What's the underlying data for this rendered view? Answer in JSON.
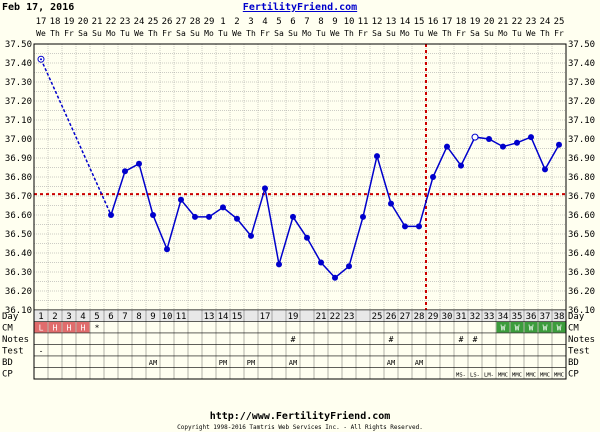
{
  "header": {
    "date": "Feb 17, 2016",
    "site": "FertilityFriend.com"
  },
  "footer": {
    "url": "http://www.FertilityFriend.com",
    "copyright": "Copyright 1998-2016 Tamtris Web Services Inc. - All Rights Reserved."
  },
  "colors": {
    "background": "#fffff0",
    "line": "#0000cc",
    "coverline": "#cc0000",
    "menstruation": "#e06c6c",
    "cervical_mucus": "#3c9c3c"
  },
  "chart_data": {
    "type": "line",
    "title": "",
    "xlabel": "",
    "ylabel": "",
    "ylim": [
      36.1,
      37.5
    ],
    "y_ticks": [
      "36.10",
      "36.20",
      "36.30",
      "36.40",
      "36.50",
      "36.60",
      "36.70",
      "36.80",
      "36.90",
      "37.00",
      "37.10",
      "37.20",
      "37.30",
      "37.40",
      "37.50"
    ],
    "grid": true,
    "cycle_days": [
      1,
      2,
      3,
      4,
      5,
      6,
      7,
      8,
      9,
      10,
      11,
      12,
      13,
      14,
      15,
      16,
      17,
      18,
      19,
      20,
      21,
      22,
      23,
      24,
      25,
      26,
      27,
      28,
      29,
      30,
      31,
      32,
      33,
      34,
      35,
      36,
      37,
      38
    ],
    "dates": [
      "17",
      "18",
      "19",
      "20",
      "21",
      "22",
      "23",
      "24",
      "25",
      "26",
      "27",
      "28",
      "29",
      "1",
      "2",
      "3",
      "4",
      "5",
      "6",
      "7",
      "8",
      "9",
      "10",
      "11",
      "12",
      "13",
      "14",
      "15",
      "16",
      "17",
      "18",
      "19",
      "20",
      "21",
      "22",
      "23",
      "24",
      "25"
    ],
    "weekdays": [
      "We",
      "Th",
      "Fr",
      "Sa",
      "Su",
      "Mo",
      "Tu",
      "We",
      "Th",
      "Fr",
      "Sa",
      "Su",
      "Mo",
      "Tu",
      "We",
      "Th",
      "Fr",
      "Sa",
      "Su",
      "Mo",
      "Tu",
      "We",
      "Th",
      "Fr",
      "Sa",
      "Su",
      "Mo",
      "Tu",
      "We",
      "Th",
      "Fr",
      "Sa",
      "Su",
      "Mo",
      "Tu",
      "We",
      "Th",
      "Fr"
    ],
    "day_labels_shown": [
      "1",
      "2",
      "3",
      "4",
      "5",
      "6",
      "7",
      "8",
      "9",
      "10",
      "11",
      "13",
      "14",
      "15",
      "17",
      "19",
      "21",
      "22",
      "23",
      "25",
      "26",
      "27",
      "28",
      "29",
      "30",
      "31",
      "32",
      "33",
      "34",
      "35",
      "36",
      "37",
      "38"
    ],
    "series": [
      {
        "name": "",
        "temperatures": [
          37.42,
          null,
          null,
          null,
          null,
          36.6,
          36.83,
          36.87,
          36.6,
          36.42,
          36.68,
          36.59,
          36.59,
          36.64,
          36.58,
          36.49,
          36.74,
          36.34,
          36.59,
          36.48,
          36.35,
          36.27,
          36.33,
          36.59,
          36.91,
          36.66,
          36.54,
          36.54,
          36.8,
          36.96,
          36.86,
          37.01,
          37.0,
          36.96,
          36.98,
          37.01,
          36.84,
          36.97
        ],
        "open_markers_days": [
          1,
          32
        ],
        "dashed_segment_days": [
          1,
          6
        ]
      }
    ],
    "coverline": 36.71,
    "ovulation_day": 28,
    "rows": {
      "day_label": "Day",
      "cm_label": "CM",
      "notes_label": "Notes",
      "test_label": "Test",
      "bd_label": "BD",
      "cp_label": "CP",
      "menstruation": [
        {
          "day": 1,
          "mark": "L"
        },
        {
          "day": 2,
          "mark": "H"
        },
        {
          "day": 3,
          "mark": "H"
        },
        {
          "day": 4,
          "mark": "H"
        }
      ],
      "spotting": [
        {
          "day": 5,
          "mark": "*"
        }
      ],
      "cervical_mucus": [
        {
          "day": 34,
          "mark": "W"
        },
        {
          "day": 35,
          "mark": "W"
        },
        {
          "day": 36,
          "mark": "W"
        },
        {
          "day": 37,
          "mark": "W"
        },
        {
          "day": 38,
          "mark": "W"
        }
      ],
      "notes": [
        {
          "day": 19,
          "mark": "#"
        },
        {
          "day": 26,
          "mark": "#"
        },
        {
          "day": 31,
          "mark": "#"
        },
        {
          "day": 32,
          "mark": "#"
        }
      ],
      "test": [
        {
          "day": 1,
          "mark": "-"
        }
      ],
      "bd": [
        {
          "day": 9,
          "mark": "AM"
        },
        {
          "day": 14,
          "mark": "PM"
        },
        {
          "day": 16,
          "mark": "PM"
        },
        {
          "day": 19,
          "mark": "AM"
        },
        {
          "day": 26,
          "mark": "AM"
        },
        {
          "day": 28,
          "mark": "AM"
        }
      ],
      "cp": [
        {
          "day": 31,
          "mark": "MS-"
        },
        {
          "day": 32,
          "mark": "LS-"
        },
        {
          "day": 33,
          "mark": "LM-"
        },
        {
          "day": 34,
          "mark": "MMC"
        },
        {
          "day": 35,
          "mark": "MMC"
        },
        {
          "day": 36,
          "mark": "MMC"
        },
        {
          "day": 37,
          "mark": "MMC"
        },
        {
          "day": 38,
          "mark": "MMC"
        }
      ]
    }
  }
}
